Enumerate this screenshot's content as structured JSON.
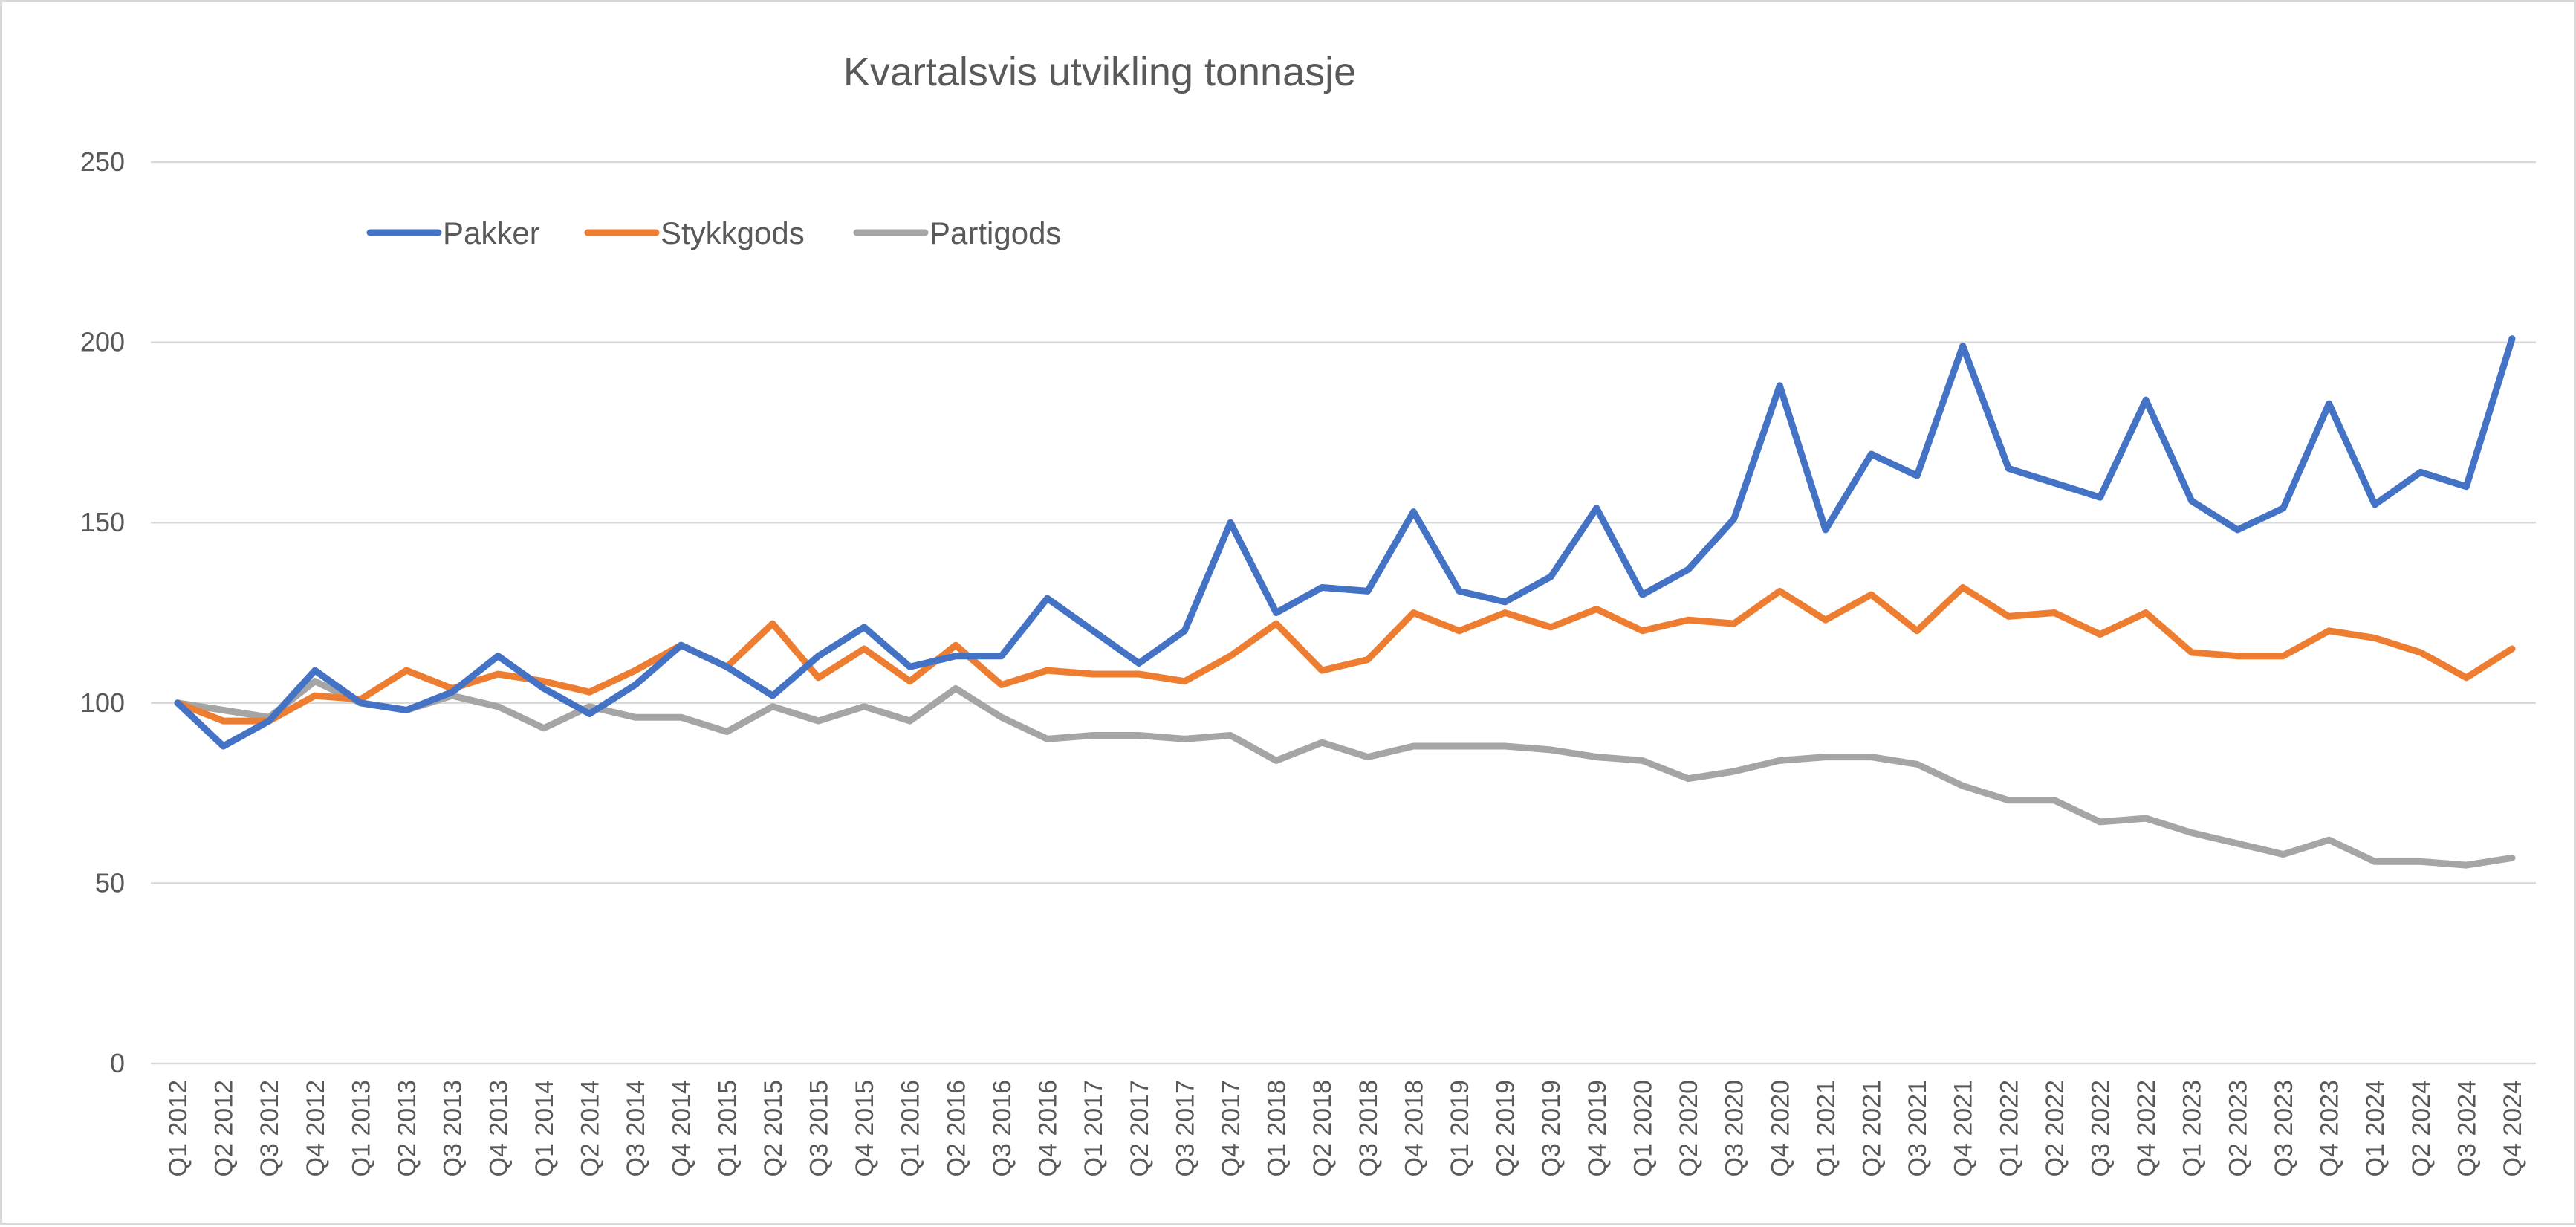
{
  "chart_data": {
    "type": "line",
    "title": "Kvartalsvis utvikling tonnasje",
    "xlabel": "",
    "ylabel": "",
    "ylim": [
      0,
      250
    ],
    "yticks": [
      0,
      50,
      100,
      150,
      200,
      250
    ],
    "grid": true,
    "legend": "top-left",
    "categories": [
      "Q1 2012",
      "Q2 2012",
      "Q3 2012",
      "Q4 2012",
      "Q1 2013",
      "Q2 2013",
      "Q3 2013",
      "Q4 2013",
      "Q1 2014",
      "Q2 2014",
      "Q3 2014",
      "Q4 2014",
      "Q1 2015",
      "Q2 2015",
      "Q3 2015",
      "Q4 2015",
      "Q1 2016",
      "Q2 2016",
      "Q3 2016",
      "Q4 2016",
      "Q1 2017",
      "Q2 2017",
      "Q3 2017",
      "Q4 2017",
      "Q1 2018",
      "Q2 2018",
      "Q3 2018",
      "Q4 2018",
      "Q1 2019",
      "Q2 2019",
      "Q3 2019",
      "Q4 2019",
      "Q1 2020",
      "Q2 2020",
      "Q3 2020",
      "Q4 2020",
      "Q1 2021",
      "Q2 2021",
      "Q3 2021",
      "Q4 2021",
      "Q1 2022",
      "Q2 2022",
      "Q3 2022",
      "Q4 2022",
      "Q1 2023",
      "Q2 2023",
      "Q3 2023",
      "Q4 2023",
      "Q1 2024",
      "Q2 2024",
      "Q3 2024",
      "Q4 2024"
    ],
    "series": [
      {
        "name": "Pakker",
        "color": "#4472C4",
        "values": [
          100,
          88,
          95,
          109,
          100,
          98,
          103,
          113,
          104,
          97,
          105,
          116,
          110,
          102,
          113,
          121,
          110,
          113,
          113,
          129,
          120,
          111,
          120,
          150,
          125,
          132,
          131,
          153,
          131,
          128,
          135,
          154,
          130,
          137,
          151,
          188,
          148,
          169,
          163,
          199,
          165,
          161,
          157,
          184,
          156,
          148,
          154,
          183,
          155,
          164,
          160,
          201
        ]
      },
      {
        "name": "Stykkgods",
        "color": "#ED7D31",
        "values": [
          100,
          95,
          95,
          102,
          101,
          109,
          104,
          108,
          106,
          103,
          109,
          116,
          110,
          122,
          107,
          115,
          106,
          116,
          105,
          109,
          108,
          108,
          106,
          113,
          122,
          109,
          112,
          125,
          120,
          125,
          121,
          126,
          120,
          123,
          122,
          131,
          123,
          130,
          120,
          132,
          124,
          125,
          119,
          125,
          114,
          113,
          113,
          120,
          118,
          114,
          107,
          115
        ]
      },
      {
        "name": "Partigods",
        "color": "#A5A5A5",
        "values": [
          100,
          98,
          96,
          106,
          100,
          98,
          102,
          99,
          93,
          99,
          96,
          96,
          92,
          99,
          95,
          99,
          95,
          104,
          96,
          90,
          91,
          91,
          90,
          91,
          84,
          89,
          85,
          88,
          88,
          88,
          87,
          85,
          84,
          79,
          81,
          84,
          85,
          85,
          83,
          77,
          73,
          73,
          67,
          68,
          64,
          61,
          58,
          62,
          56,
          56,
          55,
          57
        ]
      }
    ]
  }
}
